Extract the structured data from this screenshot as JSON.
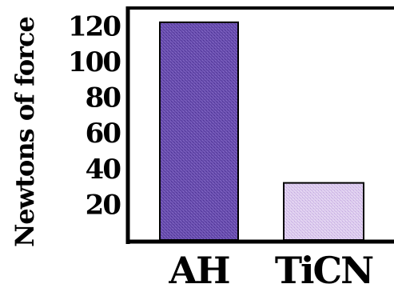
{
  "chart_data": {
    "type": "bar",
    "categories": [
      "AH",
      "TiCN"
    ],
    "values": [
      122,
      32
    ],
    "title": "",
    "xlabel": "",
    "ylabel": "Newtons of force",
    "ylim": [
      0,
      130
    ],
    "yticks": [
      20,
      40,
      60,
      80,
      100,
      120
    ],
    "ytick_labels": [
      "20",
      "40",
      "60",
      "80",
      "100",
      "120"
    ],
    "grid": false,
    "bar_colors": [
      "#6a4fb0",
      "#d8c6ea"
    ],
    "bar_stroke": "#000000",
    "axis_color": "#000000"
  }
}
